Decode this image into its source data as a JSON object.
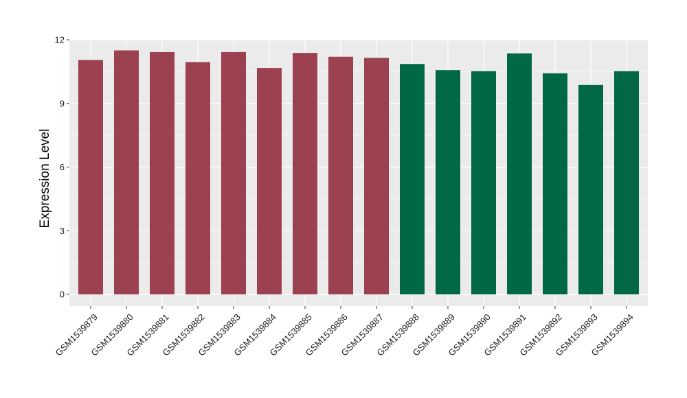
{
  "chart_data": {
    "type": "bar",
    "title": "",
    "xlabel": "",
    "ylabel": "Expression Level",
    "ylim": [
      0,
      12
    ],
    "yticks": [
      0,
      3,
      6,
      9,
      12
    ],
    "grid": true,
    "categories": [
      "GSM1539879",
      "GSM1539880",
      "GSM1539881",
      "GSM1539882",
      "GSM1539883",
      "GSM1539884",
      "GSM1539885",
      "GSM1539886",
      "GSM1539887",
      "GSM1539888",
      "GSM1539889",
      "GSM1539890",
      "GSM1539891",
      "GSM1539892",
      "GSM1539893",
      "GSM1539894"
    ],
    "values": [
      11.05,
      11.5,
      11.42,
      10.95,
      11.42,
      10.67,
      11.38,
      11.2,
      11.15,
      10.86,
      10.57,
      10.52,
      11.36,
      10.42,
      9.87,
      10.52
    ],
    "group_colors": [
      "#9b4150",
      "#9b4150",
      "#9b4150",
      "#9b4150",
      "#9b4150",
      "#9b4150",
      "#9b4150",
      "#9b4150",
      "#9b4150",
      "#016847",
      "#016847",
      "#016847",
      "#016847",
      "#016847",
      "#016847",
      "#016847"
    ],
    "panel_background": "#ebebeb",
    "grid_color": "#ffffff"
  }
}
